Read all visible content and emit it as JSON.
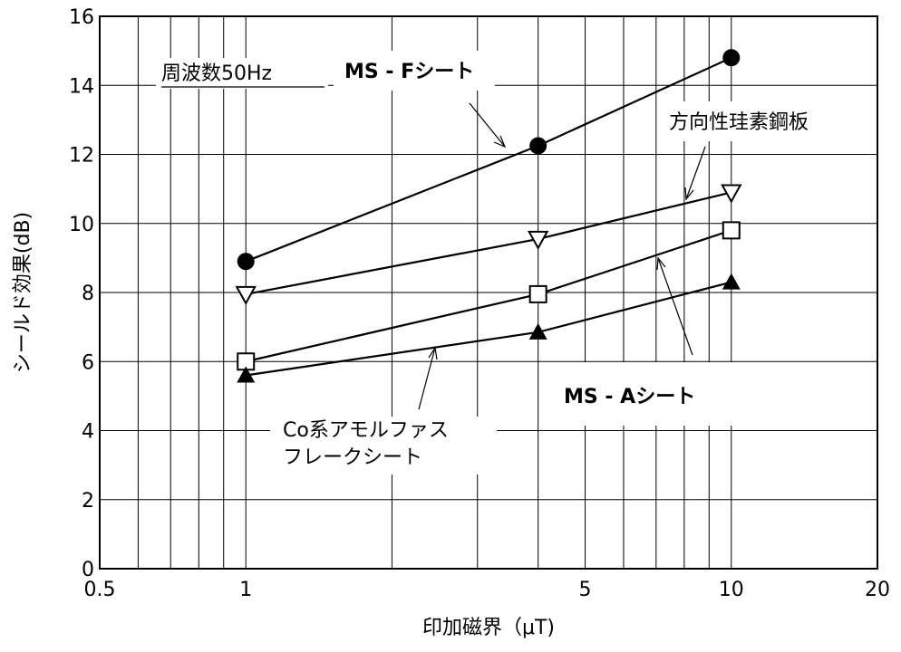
{
  "chart_data": {
    "type": "line",
    "xscale": "log",
    "xlim": [
      0.5,
      20
    ],
    "ylim": [
      0,
      16
    ],
    "xticks": [
      0.5,
      1,
      5,
      10,
      20
    ],
    "xtick_labels": [
      "0.5",
      "1",
      "5",
      "10",
      "20"
    ],
    "yticks": [
      0,
      2,
      4,
      6,
      8,
      10,
      12,
      14,
      16
    ],
    "ytick_labels": [
      "0",
      "2",
      "4",
      "6",
      "8",
      "10",
      "12",
      "14",
      "16"
    ],
    "xlabel": "印加磁界（μT)",
    "ylabel": "シールド効果(dB)",
    "grid": true,
    "note": "周波数50Hz",
    "series": [
      {
        "name": "MS - Fシート",
        "marker": "filled-circle",
        "x": [
          1,
          4,
          10
        ],
        "y": [
          8.9,
          12.25,
          14.8
        ]
      },
      {
        "name": "方向性珪素鋼板",
        "marker": "open-triangle-down",
        "x": [
          1,
          4,
          10
        ],
        "y": [
          7.95,
          9.55,
          10.9
        ]
      },
      {
        "name": "MS - Aシート",
        "marker": "open-square",
        "x": [
          1,
          4,
          10
        ],
        "y": [
          6.0,
          7.95,
          9.8
        ]
      },
      {
        "name": "Co系アモルファスフレークシート",
        "label_lines": [
          "Co系アモルファス",
          "フレークシート"
        ],
        "marker": "filled-triangle-up",
        "x": [
          1,
          4,
          10
        ],
        "y": [
          5.6,
          6.85,
          8.3
        ]
      }
    ]
  }
}
